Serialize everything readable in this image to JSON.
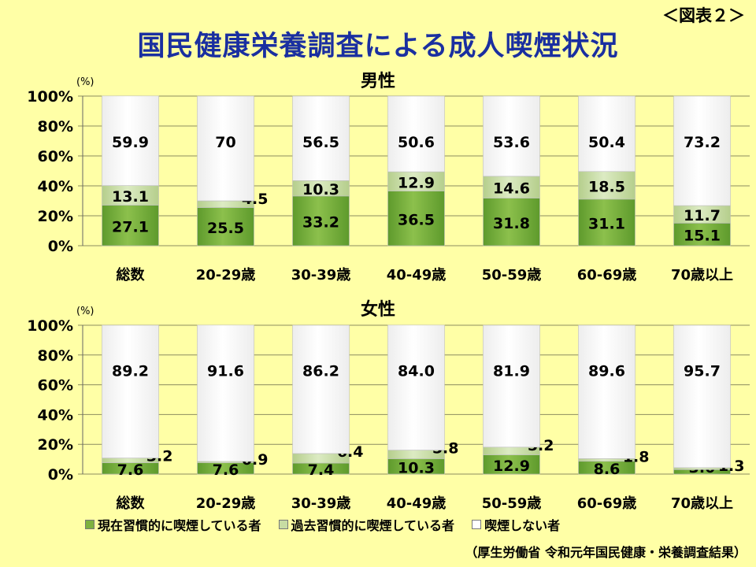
{
  "header": {
    "figure_label": "＜図表２＞",
    "title": "国民健康栄養調査による成人喫煙状況"
  },
  "legend": [
    {
      "label": "現在習慣的に喫煙している者",
      "color": "#7DB13F"
    },
    {
      "label": "過去習慣的に喫煙している者",
      "color": "#C7DCA3"
    },
    {
      "label": "喫煙しない者",
      "color": "#FFFFFF"
    }
  ],
  "source": "（厚生労働省 令和元年国民健康・栄養調査結果）",
  "chart_data": [
    {
      "type": "bar",
      "stacked": true,
      "title": "男性",
      "ylabel": "(%)",
      "ylim": [
        0,
        100
      ],
      "yticks": [
        "0%",
        "20%",
        "40%",
        "60%",
        "80%",
        "100%"
      ],
      "categories": [
        "総数",
        "20-29歳",
        "30-39歳",
        "40-49歳",
        "50-59歳",
        "60-69歳",
        "70歳以上"
      ],
      "series": [
        {
          "name": "現在習慣的に喫煙している者",
          "values": [
            27.1,
            25.5,
            33.2,
            36.5,
            31.8,
            31.1,
            15.1
          ],
          "labels": [
            "27.1",
            "25.5",
            "33.2",
            "36.5",
            "31.8",
            "31.1",
            "15.1"
          ]
        },
        {
          "name": "過去習慣的に喫煙している者",
          "values": [
            13.1,
            4.5,
            10.3,
            12.9,
            14.6,
            18.5,
            11.7
          ],
          "labels": [
            "13.1",
            "4.5",
            "10.3",
            "12.9",
            "14.6",
            "18.5",
            "11.7"
          ]
        },
        {
          "name": "喫煙しない者",
          "values": [
            59.9,
            70,
            56.5,
            50.6,
            53.6,
            50.4,
            73.2
          ],
          "labels": [
            "59.9",
            "70",
            "56.5",
            "50.6",
            "53.6",
            "50.4",
            "73.2"
          ]
        }
      ]
    },
    {
      "type": "bar",
      "stacked": true,
      "title": "女性",
      "ylabel": "(%)",
      "ylim": [
        0,
        100
      ],
      "yticks": [
        "0%",
        "20%",
        "40%",
        "60%",
        "80%",
        "100%"
      ],
      "categories": [
        "総数",
        "20-29歳",
        "30-39歳",
        "40-49歳",
        "50-59歳",
        "60-69歳",
        "70歳以上"
      ],
      "series": [
        {
          "name": "現在習慣的に喫煙している者",
          "values": [
            7.6,
            7.6,
            7.4,
            10.3,
            12.9,
            8.6,
            3.0
          ],
          "labels": [
            "7.6",
            "7.6",
            "7.4",
            "10.3",
            "12.9",
            "8.6",
            "3.0"
          ]
        },
        {
          "name": "過去習慣的に喫煙している者",
          "values": [
            3.2,
            0.9,
            6.4,
            5.8,
            5.2,
            1.8,
            1.3
          ],
          "labels": [
            "3.2",
            "0.9",
            "6.4",
            "5.8",
            "5.2",
            "1.8",
            "1.3"
          ]
        },
        {
          "name": "喫煙しない者",
          "values": [
            89.2,
            91.6,
            86.2,
            84.0,
            81.9,
            89.6,
            95.7
          ],
          "labels": [
            "89.2",
            "91.6",
            "86.2",
            "84.0",
            "81.9",
            "89.6",
            "95.7"
          ]
        }
      ]
    }
  ]
}
